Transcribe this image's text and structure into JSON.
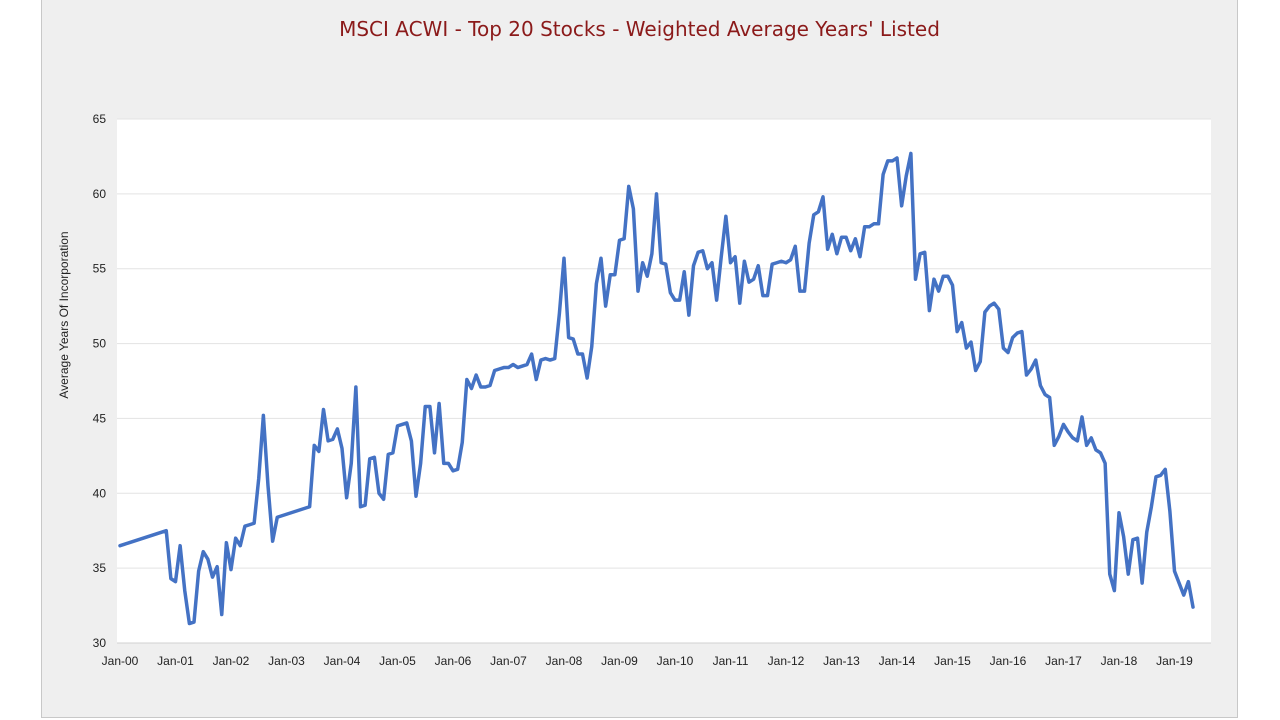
{
  "chart_data": {
    "type": "line",
    "title": "MSCI ACWI - Top 20 Stocks - Weighted Average Years' Listed",
    "xlabel": "",
    "ylabel": "Average Years Of Incorporation",
    "ylim": [
      30,
      65
    ],
    "yticks": [
      30,
      35,
      40,
      45,
      50,
      55,
      60,
      65
    ],
    "xticks": [
      "Jan-00",
      "Jan-01",
      "Jan-02",
      "Jan-03",
      "Jan-04",
      "Jan-05",
      "Jan-06",
      "Jan-07",
      "Jan-08",
      "Jan-09",
      "Jan-10",
      "Jan-11",
      "Jan-12",
      "Jan-13",
      "Jan-14",
      "Jan-15",
      "Jan-16",
      "Jan-17",
      "Jan-18",
      "Jan-19"
    ],
    "grid": true,
    "legend": "none",
    "line_color": "#4472c4",
    "series": [
      {
        "x_start": "Jan-00",
        "frequency": "monthly",
        "values": [
          36.5,
          36.6,
          36.7,
          36.8,
          36.9,
          37.0,
          37.1,
          37.2,
          37.3,
          37.4,
          37.5,
          34.3,
          34.1,
          36.5,
          33.5,
          31.3,
          31.4,
          34.8,
          36.1,
          35.6,
          34.4,
          35.1,
          31.9,
          36.7,
          34.9,
          37.0,
          36.5,
          37.8,
          37.9,
          38.0,
          41.0,
          45.2,
          40.5,
          36.8,
          38.4,
          38.5,
          38.6,
          38.7,
          38.8,
          38.9,
          39.0,
          39.1,
          43.2,
          42.8,
          45.6,
          43.5,
          43.6,
          44.3,
          43.0,
          39.7,
          42.0,
          47.1,
          39.1,
          39.2,
          42.3,
          42.4,
          40.0,
          39.6,
          42.6,
          42.7,
          44.5,
          44.6,
          44.7,
          43.5,
          39.8,
          42.0,
          45.8,
          45.8,
          42.7,
          46.0,
          42.0,
          42.0,
          41.5,
          41.6,
          43.4,
          47.6,
          47.0,
          47.9,
          47.1,
          47.1,
          47.2,
          48.2,
          48.3,
          48.4,
          48.4,
          48.6,
          48.4,
          48.5,
          48.6,
          49.3,
          47.6,
          48.9,
          49.0,
          48.9,
          49.0,
          52.0,
          55.7,
          50.4,
          50.3,
          49.3,
          49.3,
          47.7,
          49.8,
          54.0,
          55.7,
          52.5,
          54.6,
          54.6,
          56.9,
          57.0,
          60.5,
          59.0,
          53.5,
          55.4,
          54.5,
          56.0,
          60.0,
          55.4,
          55.3,
          53.4,
          52.9,
          52.9,
          54.8,
          51.9,
          55.2,
          56.1,
          56.2,
          55.0,
          55.4,
          52.9,
          55.8,
          58.5,
          55.4,
          55.8,
          52.7,
          55.5,
          54.1,
          54.3,
          55.2,
          53.2,
          53.2,
          55.3,
          55.4,
          55.5,
          55.4,
          55.6,
          56.5,
          53.5,
          53.5,
          56.7,
          58.6,
          58.8,
          59.8,
          56.3,
          57.3,
          56.0,
          57.1,
          57.1,
          56.2,
          57.0,
          55.8,
          57.8,
          57.8,
          58.0,
          58.0,
          61.3,
          62.2,
          62.2,
          62.4,
          59.2,
          61.2,
          62.7,
          54.3,
          56.0,
          56.1,
          52.2,
          54.3,
          53.5,
          54.5,
          54.5,
          53.9,
          50.8,
          51.4,
          49.7,
          50.1,
          48.2,
          48.8,
          52.1,
          52.5,
          52.7,
          52.3,
          49.7,
          49.4,
          50.4,
          50.7,
          50.8,
          47.9,
          48.3,
          48.9,
          47.2,
          46.6,
          46.4,
          43.2,
          43.8,
          44.6,
          44.1,
          43.7,
          43.5,
          45.1,
          43.2,
          43.7,
          42.9,
          42.7,
          42.0,
          34.6,
          33.5,
          38.7,
          37.1,
          34.6,
          36.9,
          37.0,
          34.0,
          37.4,
          39.1,
          41.1,
          41.2,
          41.6,
          38.8,
          34.8,
          34.0,
          33.2,
          34.1,
          32.4
        ]
      }
    ]
  }
}
